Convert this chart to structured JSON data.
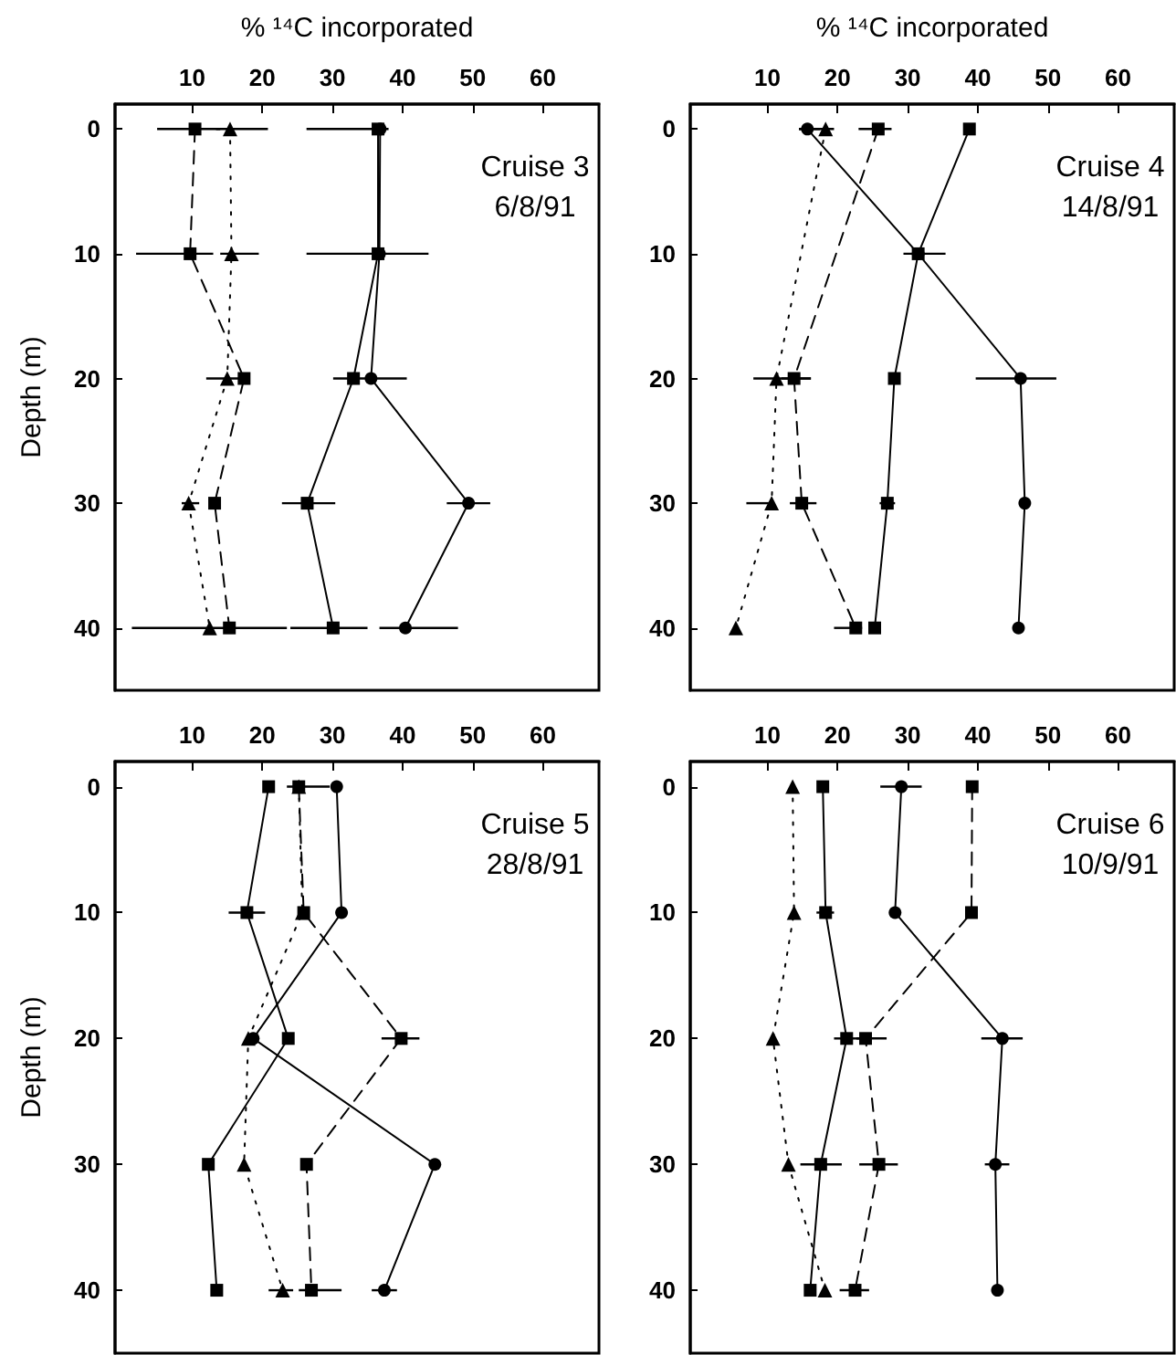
{
  "chart_data": [
    {
      "type": "line",
      "title": "Cruise 3",
      "subtitle": "6/8/91",
      "xlabel": "% ¹⁴C incorporated",
      "ylabel": "Depth (m)",
      "xlim": [
        -1,
        68
      ],
      "xticks": [
        10,
        20,
        30,
        40,
        50,
        60
      ],
      "ylim": [
        45,
        -2
      ],
      "yticks": [
        0,
        10,
        20,
        30,
        40
      ],
      "grid": false,
      "series": [
        {
          "color": "#000000",
          "marker": "circle",
          "line_style": "solid",
          "x": [
            36.8,
            36.7,
            35.5,
            49.4,
            40.4
          ],
          "values": [
            0,
            10,
            20,
            30,
            40
          ],
          "xerrors": [
            [
              26.3,
              38
            ],
            [
              26.3,
              43.7
            ],
            [
              30.1,
              40.6
            ],
            [
              46.3,
              52.5
            ],
            [
              36.7,
              47.9
            ]
          ]
        },
        {
          "color": "#000000",
          "marker": "square",
          "line_style": "solid",
          "x": [
            36.5,
            36.5,
            33.0,
            26.4,
            30.1
          ],
          "values": [
            0,
            10,
            20,
            30,
            40
          ],
          "xerrors": [
            null,
            null,
            null,
            [
              22.8,
              30.4
            ],
            [
              24,
              35
            ]
          ]
        },
        {
          "color": "#000000",
          "marker": "square",
          "line_style": "dashed",
          "x": [
            10.4,
            9.7,
            17.4,
            13.2,
            15.3
          ],
          "values": [
            0,
            10,
            20,
            30,
            40
          ],
          "xerrors": [
            [
              5,
              14
            ],
            [
              2,
              13
            ],
            null,
            null,
            [
              1.4,
              23.5
            ]
          ]
        },
        {
          "color": "#000000",
          "marker": "triangle",
          "line_style": "dotted",
          "x": [
            15.4,
            15.6,
            15.0,
            9.5,
            12.5
          ],
          "values": [
            0,
            10,
            20,
            30,
            40
          ],
          "xerrors": [
            [
              13.4,
              20.8
            ],
            [
              14,
              19.5
            ],
            [
              12,
              18
            ],
            [
              8.5,
              11
            ],
            null
          ]
        }
      ]
    },
    {
      "type": "line",
      "title": "Cruise 4",
      "subtitle": "14/8/91",
      "xlabel": "% ¹⁴C incorporated",
      "xlim": [
        -1,
        68
      ],
      "xticks": [
        10,
        20,
        30,
        40,
        50,
        60
      ],
      "ylim": [
        45,
        -2
      ],
      "yticks": [
        0,
        10,
        20,
        30,
        40
      ],
      "grid": false,
      "series": [
        {
          "color": "#000000",
          "marker": "circle",
          "line_style": "solid",
          "x": [
            15.7,
            31.5,
            46.1,
            46.7,
            45.8
          ],
          "values": [
            0,
            10,
            20,
            30,
            40
          ],
          "xerrors": [
            [
              14.5,
              17.5
            ],
            [
              29.4,
              35.4
            ],
            [
              39.7,
              51.2
            ],
            null,
            null
          ]
        },
        {
          "color": "#000000",
          "marker": "square",
          "line_style": "solid",
          "x": [
            38.8,
            31.5,
            28.1,
            27.1,
            25.3
          ],
          "values": [
            0,
            10,
            20,
            30,
            40
          ],
          "xerrors": [
            null,
            null,
            null,
            [
              26,
              28.2
            ],
            null
          ]
        },
        {
          "color": "#000000",
          "marker": "square",
          "line_style": "dashed",
          "x": [
            25.8,
            13.8,
            14.9,
            22.6
          ],
          "values": [
            0,
            20,
            30,
            40
          ],
          "xerrors": [
            [
              23,
              27.7
            ],
            [
              12,
              16.2
            ],
            [
              13.2,
              17
            ],
            [
              19.5,
              23.5
            ]
          ]
        },
        {
          "color": "#000000",
          "marker": "triangle",
          "line_style": "dotted",
          "x": [
            18.3,
            11.3,
            10.6,
            5.5
          ],
          "values": [
            0,
            20,
            30,
            40
          ],
          "xerrors": [
            [
              14.5,
              19.5
            ],
            [
              8,
              16.2
            ],
            [
              7,
              10.6
            ],
            null
          ]
        }
      ]
    },
    {
      "type": "line",
      "title": "Cruise 5",
      "subtitle": "28/8/91",
      "ylabel": "Depth (m)",
      "xlim": [
        -1,
        68
      ],
      "xticks": [
        10,
        20,
        30,
        40,
        50,
        60
      ],
      "ylim": [
        45,
        -2
      ],
      "yticks": [
        0,
        10,
        20,
        30,
        40
      ],
      "grid": false,
      "series": [
        {
          "color": "#000000",
          "marker": "circle",
          "line_style": "solid",
          "x": [
            30.6,
            31.3,
            18.7,
            44.6,
            37.4
          ],
          "values": [
            0,
            10,
            20,
            30,
            40
          ],
          "xerrors": [
            null,
            null,
            null,
            null,
            [
              35.6,
              39.2
            ]
          ]
        },
        {
          "color": "#000000",
          "marker": "square",
          "line_style": "solid",
          "x": [
            20.9,
            17.8,
            23.7,
            12.3,
            13.5
          ],
          "values": [
            0,
            10,
            20,
            30,
            40
          ],
          "xerrors": [
            null,
            [
              15.2,
              20.4
            ],
            null,
            null,
            null
          ]
        },
        {
          "color": "#000000",
          "marker": "square",
          "line_style": "dashed",
          "x": [
            25.2,
            25.9,
            39.8,
            26.3,
            27.0
          ],
          "values": [
            0,
            10,
            20,
            30,
            40
          ],
          "xerrors": [
            [
              23.5,
              29.6
            ],
            null,
            [
              37,
              42.4
            ],
            null,
            [
              25.2,
              31.3
            ]
          ]
        },
        {
          "color": "#000000",
          "marker": "triangle",
          "line_style": "dotted",
          "x": [
            25.2,
            25.7,
            18.0,
            17.4,
            22.9
          ],
          "values": [
            0,
            10,
            20,
            30,
            40
          ],
          "xerrors": [
            null,
            null,
            null,
            null,
            [
              20.9,
              24.4
            ]
          ]
        }
      ]
    },
    {
      "type": "line",
      "title": "Cruise 6",
      "subtitle": "10/9/91",
      "xlim": [
        -1,
        68
      ],
      "xticks": [
        10,
        20,
        30,
        40,
        50,
        60
      ],
      "ylim": [
        45,
        -2
      ],
      "yticks": [
        0,
        10,
        20,
        30,
        40
      ],
      "grid": false,
      "series": [
        {
          "color": "#000000",
          "marker": "circle",
          "line_style": "solid",
          "x": [
            29.1,
            28.2,
            43.5,
            42.5,
            42.8
          ],
          "values": [
            0,
            10,
            20,
            30,
            40
          ],
          "xerrors": [
            [
              26.1,
              32
            ],
            null,
            [
              40.5,
              46.4
            ],
            [
              41,
              44.5
            ],
            null
          ]
        },
        {
          "color": "#000000",
          "marker": "square",
          "line_style": "solid",
          "x": [
            17.9,
            18.3,
            21.3,
            17.6,
            16.1
          ],
          "values": [
            0,
            10,
            20,
            30,
            40
          ],
          "xerrors": [
            null,
            [
              17,
              19.5
            ],
            [
              19.5,
              23.5
            ],
            [
              14.7,
              20.6
            ],
            null
          ]
        },
        {
          "color": "#000000",
          "marker": "square",
          "line_style": "dashed",
          "x": [
            39.2,
            39.1,
            24.0,
            25.9,
            22.5
          ],
          "values": [
            0,
            10,
            20,
            30,
            40
          ],
          "xerrors": [
            null,
            null,
            [
              22.7,
              27
            ],
            [
              23.1,
              28.6
            ],
            [
              20.3,
              24.5
            ]
          ]
        },
        {
          "color": "#000000",
          "marker": "triangle",
          "line_style": "dotted",
          "x": [
            13.6,
            13.8,
            10.8,
            13.0,
            18.2
          ],
          "values": [
            0,
            10,
            20,
            30,
            40
          ],
          "xerrors": [
            null,
            null,
            null,
            null,
            null
          ]
        }
      ]
    }
  ]
}
